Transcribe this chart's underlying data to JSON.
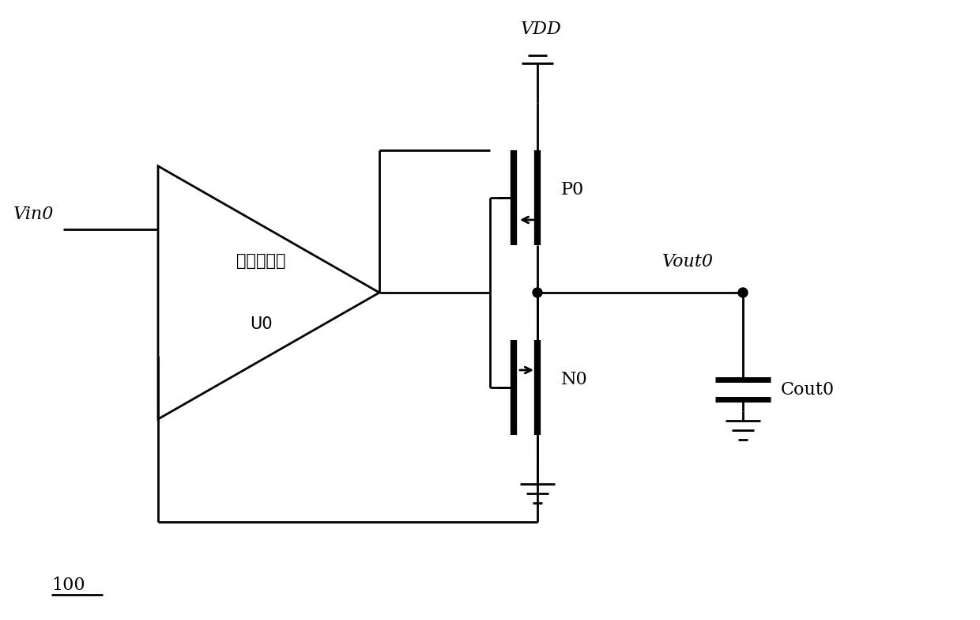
{
  "background_color": "#ffffff",
  "line_color": "#000000",
  "line_width": 2.0,
  "fig_width": 12.4,
  "fig_height": 7.84,
  "label_100": "100",
  "label_VDD": "VDD",
  "label_Vin0": "Vin0",
  "label_U0": "U0",
  "label_opamp": "运算放大器",
  "label_P0": "P0",
  "label_N0": "N0",
  "label_Vout0": "Vout0",
  "label_Cout0": "Cout0"
}
